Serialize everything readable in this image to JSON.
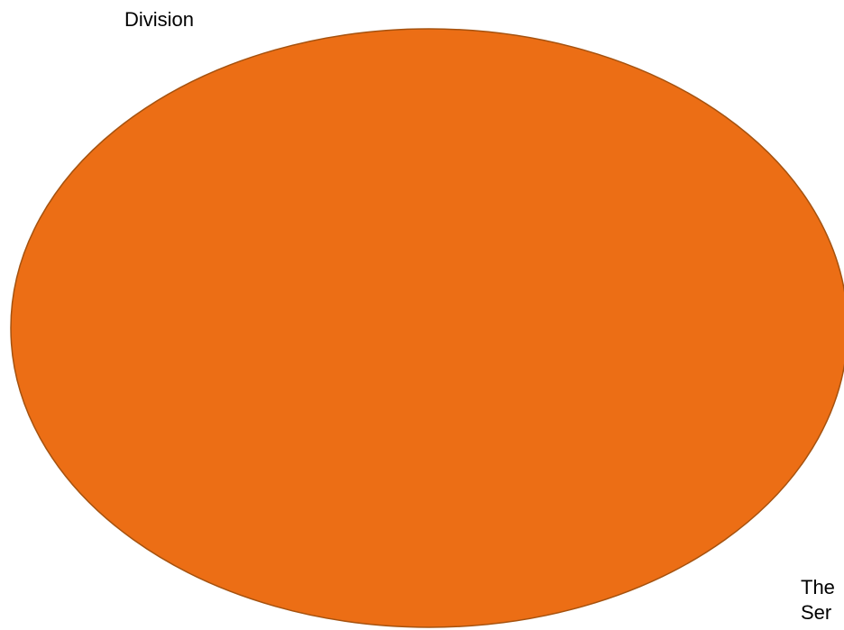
{
  "labels": {
    "top": "Division",
    "bottom_line1": "The",
    "bottom_line2": "Ser"
  },
  "colors": {
    "ellipse_fill": "#EC6E15",
    "ellipse_stroke": "#A5520F",
    "text": "#000000"
  }
}
